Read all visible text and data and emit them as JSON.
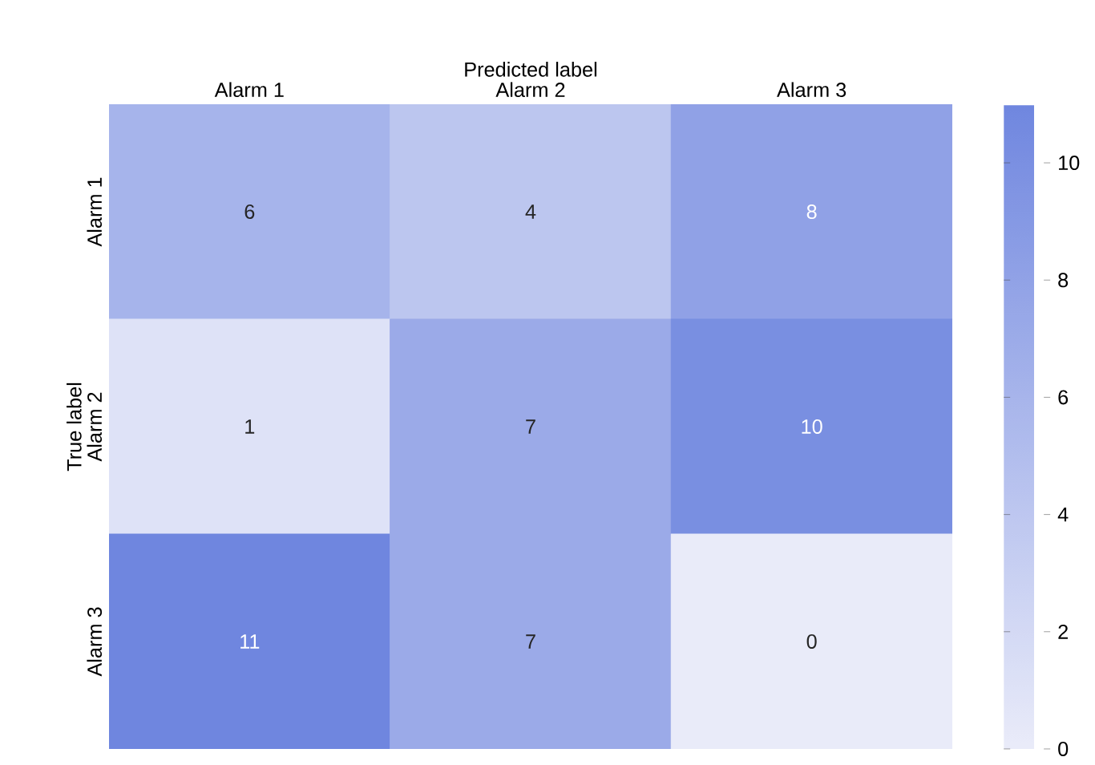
{
  "chart_data": {
    "type": "heatmap",
    "xlabel": "Predicted label",
    "ylabel": "True label",
    "categories": [
      "Alarm 1",
      "Alarm 2",
      "Alarm 3"
    ],
    "y_categories": [
      "Alarm 1",
      "Alarm 2",
      "Alarm 3"
    ],
    "cells": [
      [
        6,
        4,
        8
      ],
      [
        1,
        7,
        10
      ],
      [
        11,
        7,
        0
      ]
    ],
    "colors": [
      "#e9ebf9",
      "#6f86df"
    ],
    "clim": [
      0,
      11
    ],
    "cticks": [
      0,
      2,
      4,
      6,
      8,
      10
    ],
    "data_labels": true
  }
}
